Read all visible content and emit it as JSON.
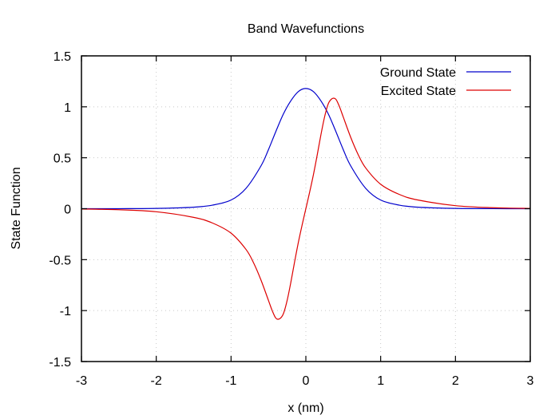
{
  "chart_data": {
    "type": "line",
    "title": "Band Wavefunctions",
    "xlabel": "x (nm)",
    "ylabel": "State Function",
    "xlim": [
      -3,
      3
    ],
    "ylim": [
      -1.5,
      1.5
    ],
    "xticks": [
      -3,
      -2,
      -1,
      0,
      1,
      2,
      3
    ],
    "xtick_labels": [
      "-3",
      "-2",
      "-1",
      "0",
      "1",
      "2",
      "3"
    ],
    "yticks": [
      -1.5,
      -1,
      -0.5,
      0,
      0.5,
      1,
      1.5
    ],
    "ytick_labels": [
      "-1.5",
      "-1",
      "-0.5",
      "0",
      "0.5",
      "1",
      "1.5"
    ],
    "grid": true,
    "legend_position": "top-right",
    "series": [
      {
        "name": "Ground State",
        "color": "#0000cc",
        "x": [
          -3,
          -2.5,
          -2,
          -1.5,
          -1.25,
          -1,
          -0.8,
          -0.6,
          -0.5,
          -0.4,
          -0.3,
          -0.2,
          -0.1,
          0,
          0.1,
          0.2,
          0.3,
          0.4,
          0.5,
          0.6,
          0.8,
          1,
          1.25,
          1.5,
          2,
          2.5,
          3
        ],
        "y": [
          0.0001,
          0.0005,
          0.003,
          0.015,
          0.035,
          0.085,
          0.2,
          0.42,
          0.58,
          0.76,
          0.93,
          1.06,
          1.15,
          1.18,
          1.15,
          1.06,
          0.93,
          0.76,
          0.58,
          0.42,
          0.2,
          0.085,
          0.035,
          0.015,
          0.003,
          0.0005,
          0.0001
        ]
      },
      {
        "name": "Excited State",
        "color": "#dd0000",
        "x": [
          -3,
          -2.5,
          -2,
          -1.5,
          -1.25,
          -1,
          -0.8,
          -0.7,
          -0.6,
          -0.5,
          -0.45,
          -0.4,
          -0.35,
          -0.3,
          -0.25,
          -0.2,
          -0.15,
          -0.1,
          -0.05,
          0,
          0.05,
          0.1,
          0.15,
          0.2,
          0.25,
          0.3,
          0.35,
          0.4,
          0.45,
          0.5,
          0.6,
          0.7,
          0.8,
          1,
          1.25,
          1.5,
          2,
          2.5,
          3
        ],
        "y": [
          -0.003,
          -0.01,
          -0.03,
          -0.085,
          -0.14,
          -0.24,
          -0.4,
          -0.53,
          -0.7,
          -0.9,
          -1.0,
          -1.075,
          -1.08,
          -1.03,
          -0.9,
          -0.72,
          -0.52,
          -0.33,
          -0.16,
          0,
          0.16,
          0.33,
          0.52,
          0.72,
          0.9,
          1.03,
          1.08,
          1.075,
          1.0,
          0.9,
          0.7,
          0.53,
          0.4,
          0.24,
          0.14,
          0.085,
          0.03,
          0.01,
          0.003
        ]
      }
    ]
  }
}
